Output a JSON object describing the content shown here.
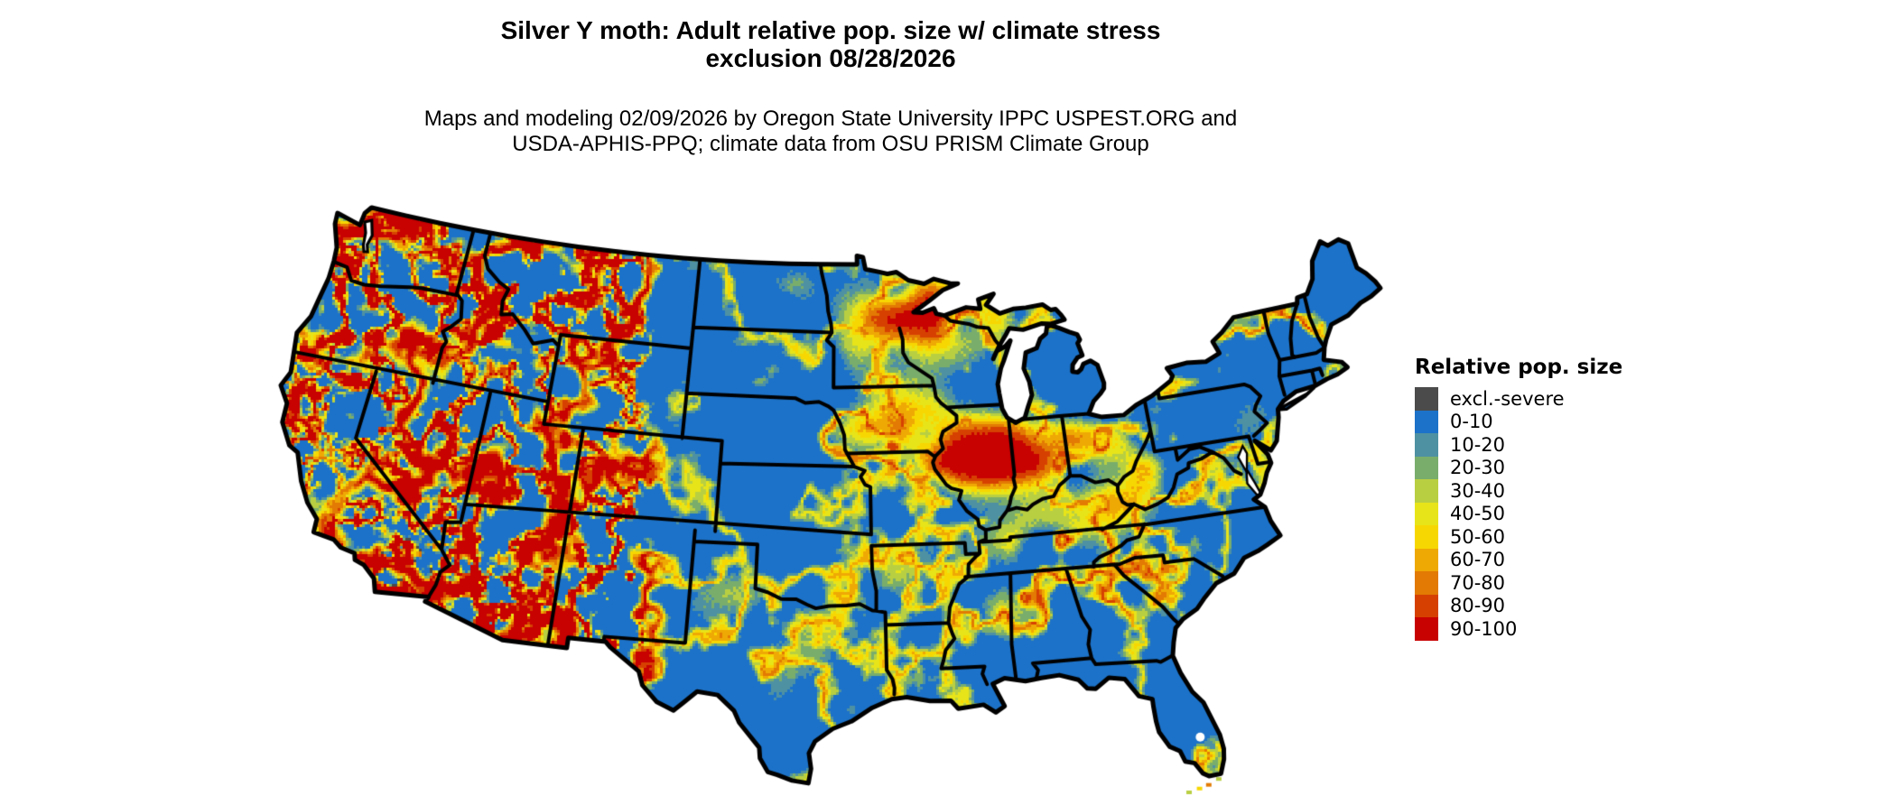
{
  "header": {
    "title_line1": "Silver Y moth: Adult relative pop. size w/ climate stress",
    "title_line2": "exclusion 08/28/2026",
    "subtitle_line1": "Maps and modeling 02/09/2026 by Oregon State University IPPC USPEST.ORG and",
    "subtitle_line2": "USDA-APHIS-PPQ; climate data from OSU PRISM Climate Group"
  },
  "legend": {
    "title": "Relative pop. size",
    "entries": [
      {
        "label": "excl.-severe",
        "color": "#4b4b4b"
      },
      {
        "label": "0-10",
        "color": "#1c72c8"
      },
      {
        "label": "10-20",
        "color": "#4e91a3"
      },
      {
        "label": "20-30",
        "color": "#79ad6c"
      },
      {
        "label": "30-40",
        "color": "#b9cf42"
      },
      {
        "label": "40-50",
        "color": "#e7e419"
      },
      {
        "label": "50-60",
        "color": "#f7d702"
      },
      {
        "label": "60-70",
        "color": "#efa905"
      },
      {
        "label": "70-80",
        "color": "#e27a03"
      },
      {
        "label": "80-90",
        "color": "#d64102"
      },
      {
        "label": "90-100",
        "color": "#c80101"
      }
    ]
  },
  "map": {
    "region": "contiguous United States",
    "border_color": "#000000",
    "water_color": "#ffffff"
  }
}
